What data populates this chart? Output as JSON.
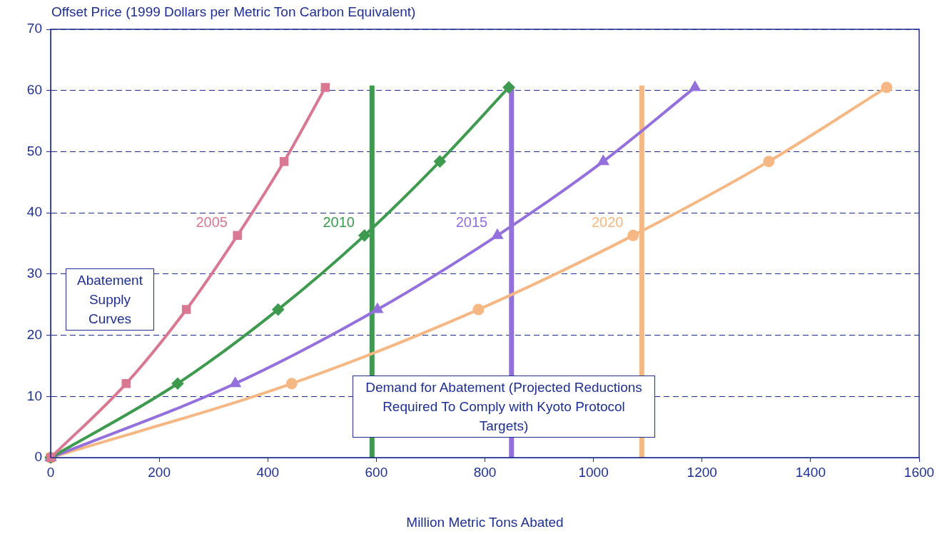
{
  "chart_data": {
    "type": "line",
    "ylabel": "Offset Price (1999 Dollars per Metric Ton Carbon Equivalent)",
    "xlabel": "Million Metric Tons Abated",
    "xlim": [
      0,
      1600
    ],
    "xticks": [
      0,
      200,
      400,
      600,
      800,
      1000,
      1200,
      1400,
      1600
    ],
    "ylim": [
      0,
      70
    ],
    "yticks": [
      0,
      10,
      20,
      30,
      40,
      50,
      60,
      70
    ],
    "grid": "y",
    "legend": false,
    "series": [
      {
        "name": "2005",
        "color": "#d87893",
        "marker": "square",
        "x": [
          0,
          139,
          250,
          344,
          430,
          506
        ],
        "values": [
          0,
          12.1,
          24.2,
          36.3,
          48.4,
          60.5
        ]
      },
      {
        "name": "2010",
        "color": "#3d9a4f",
        "marker": "diamond",
        "x": [
          0,
          234,
          419,
          578,
          717,
          844
        ],
        "values": [
          0,
          12.1,
          24.2,
          36.3,
          48.4,
          60.5
        ]
      },
      {
        "name": "2015",
        "color": "#9370db",
        "marker": "triangle",
        "x": [
          0,
          340,
          602,
          823,
          1018,
          1187
        ],
        "values": [
          0,
          12.1,
          24.2,
          36.3,
          48.4,
          60.5
        ]
      },
      {
        "name": "2020",
        "color": "#f5b884",
        "marker": "circle",
        "x": [
          0,
          444,
          788,
          1073,
          1323,
          1540
        ],
        "values": [
          0,
          12.1,
          24.2,
          36.3,
          48.4,
          60.5
        ]
      },
      {
        "color": "#3d9a4f",
        "marker": "none",
        "x": [
          592,
          592
        ],
        "values": [
          0,
          60.8
        ]
      },
      {
        "color": "#9370db",
        "marker": "none",
        "x": [
          849,
          849
        ],
        "values": [
          0,
          60.8
        ]
      },
      {
        "color": "#f5b884",
        "marker": "none",
        "x": [
          1089,
          1089
        ],
        "values": [
          0,
          60.8
        ]
      }
    ],
    "annotations": [
      "Abatement Supply Curves",
      "Demand for Abatement (Projected Reductions Required To Comply with Kyoto Protocol Targets)"
    ]
  }
}
